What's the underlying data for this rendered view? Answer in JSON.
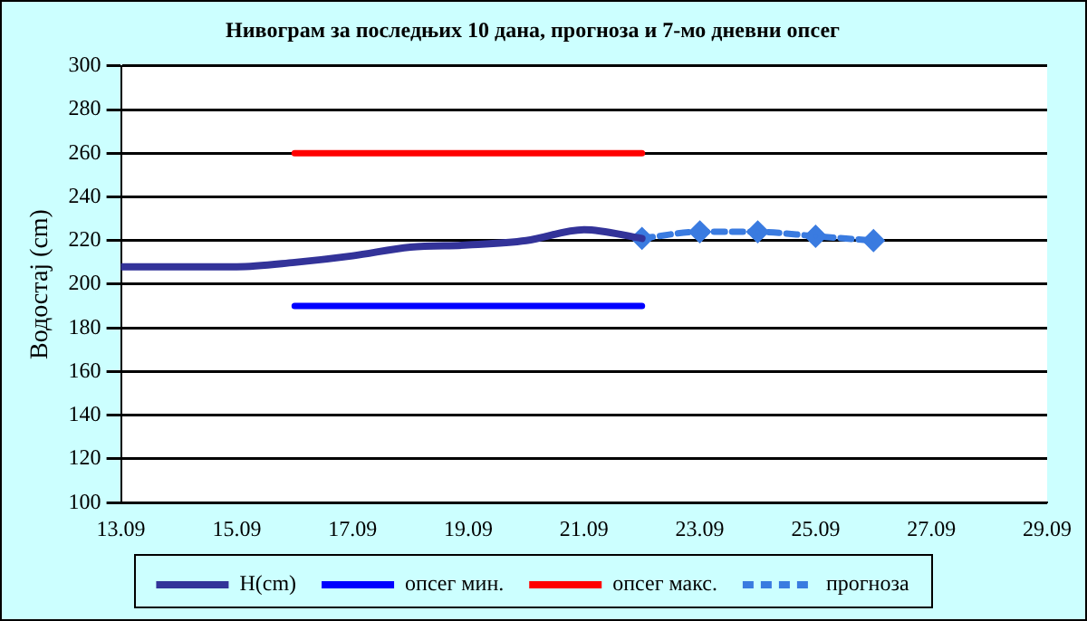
{
  "chart_data": {
    "type": "line",
    "title": "Нивограм за последњих 10 дана, прогноза и 7-мо дневни опсег",
    "ylabel": "Водостај (cm)",
    "xlim": [
      "--09-13",
      "--09-29"
    ],
    "xticks": [
      {
        "value": "--09-13",
        "label": "13.09"
      },
      {
        "value": "--09-15",
        "label": "15.09"
      },
      {
        "value": "--09-17",
        "label": "17.09"
      },
      {
        "value": "--09-19",
        "label": "19.09"
      },
      {
        "value": "--09-21",
        "label": "21.09"
      },
      {
        "value": "--09-23",
        "label": "23.09"
      },
      {
        "value": "--09-25",
        "label": "25.09"
      },
      {
        "value": "--09-27",
        "label": "27.09"
      },
      {
        "value": "--09-29",
        "label": "29.09"
      }
    ],
    "ylim": [
      100,
      300
    ],
    "yticks": [
      100,
      120,
      140,
      160,
      180,
      200,
      220,
      240,
      260,
      280,
      300
    ],
    "grid": "y",
    "legend": "bottom",
    "series": [
      {
        "name": "H(cm)",
        "color": "#333399",
        "marker": "none",
        "x": [
          "--09-13",
          "--09-14",
          "--09-15",
          "--09-16",
          "--09-17",
          "--09-18",
          "--09-19",
          "--09-20",
          "--09-21",
          "--09-22"
        ],
        "values": [
          208,
          208,
          208,
          210,
          213,
          217,
          218,
          220,
          225,
          221
        ]
      },
      {
        "name": "опсег мин.",
        "color": "#0000ff",
        "marker": "none",
        "x": [
          "--09-16",
          "--09-22"
        ],
        "values": [
          190,
          190
        ]
      },
      {
        "name": "опсег макс.",
        "color": "#ff0000",
        "marker": "none",
        "x": [
          "--09-16",
          "--09-22"
        ],
        "values": [
          260,
          260
        ]
      },
      {
        "name": "прогноза",
        "color": "#3a7be0",
        "marker": "diamond",
        "line_style": "dashed",
        "x": [
          "--09-22",
          "--09-23",
          "--09-24",
          "--09-25",
          "--09-26"
        ],
        "values": [
          221,
          224,
          224,
          222,
          220
        ]
      }
    ]
  }
}
